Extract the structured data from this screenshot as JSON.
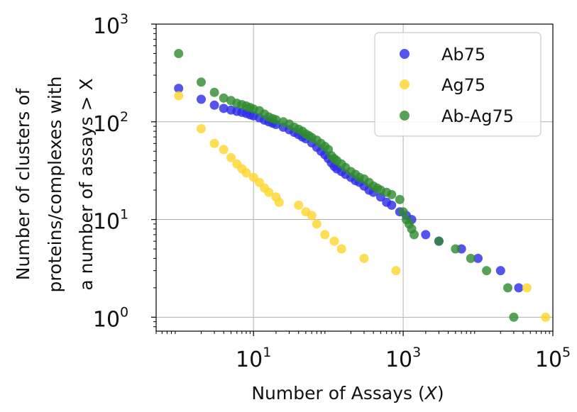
{
  "chart_data": {
    "type": "scatter",
    "title": "",
    "xlabel_prefix": "Number of Assays (",
    "xlabel_var": "X",
    "xlabel_suffix": ")",
    "ylabel_lines": [
      "Number of clusters of",
      "proteins/complexes with",
      "a number of assays > X"
    ],
    "x_scale": "log",
    "y_scale": "log",
    "xlim": [
      0.5,
      100000
    ],
    "ylim": [
      0.72,
      1000
    ],
    "grid": true,
    "legend_position": "top-right",
    "x_ticks": [
      {
        "value": 10,
        "base": "10",
        "exp": "1"
      },
      {
        "value": 1000,
        "base": "10",
        "exp": "3"
      },
      {
        "value": 100000,
        "base": "10",
        "exp": "5"
      }
    ],
    "y_ticks": [
      {
        "value": 1,
        "base": "10",
        "exp": "0"
      },
      {
        "value": 10,
        "base": "10",
        "exp": "1"
      },
      {
        "value": 100,
        "base": "10",
        "exp": "2"
      },
      {
        "value": 1000,
        "base": "10",
        "exp": "3"
      }
    ],
    "series": [
      {
        "name": "Ab75",
        "color": "#2a2ae8",
        "points": [
          [
            1,
            220
          ],
          [
            2,
            170
          ],
          [
            3,
            148
          ],
          [
            4,
            137
          ],
          [
            5,
            132
          ],
          [
            6,
            128
          ],
          [
            7,
            125
          ],
          [
            8,
            122
          ],
          [
            9,
            118
          ],
          [
            10,
            115
          ],
          [
            12,
            110
          ],
          [
            14,
            104
          ],
          [
            16,
            100
          ],
          [
            18,
            97
          ],
          [
            20,
            94
          ],
          [
            25,
            88
          ],
          [
            30,
            83
          ],
          [
            35,
            78
          ],
          [
            40,
            74
          ],
          [
            45,
            70
          ],
          [
            50,
            67
          ],
          [
            60,
            61
          ],
          [
            70,
            55
          ],
          [
            80,
            50
          ],
          [
            90,
            46
          ],
          [
            100,
            42
          ],
          [
            110,
            38
          ],
          [
            120,
            35
          ],
          [
            130,
            33
          ],
          [
            150,
            31
          ],
          [
            170,
            29
          ],
          [
            200,
            27
          ],
          [
            230,
            25
          ],
          [
            260,
            24
          ],
          [
            300,
            22
          ],
          [
            350,
            20
          ],
          [
            400,
            19
          ],
          [
            500,
            17
          ],
          [
            600,
            15
          ],
          [
            700,
            14
          ],
          [
            900,
            12
          ],
          [
            1100,
            11
          ],
          [
            1300,
            10
          ],
          [
            2000,
            7
          ],
          [
            3000,
            6
          ],
          [
            6000,
            5
          ],
          [
            10000,
            4
          ],
          [
            20000,
            3
          ],
          [
            35000,
            2
          ]
        ]
      },
      {
        "name": "Ag75",
        "color": "#ffd42a",
        "points": [
          [
            1,
            185
          ],
          [
            2,
            85
          ],
          [
            3,
            60
          ],
          [
            4,
            52
          ],
          [
            5,
            43
          ],
          [
            6,
            37
          ],
          [
            7,
            33
          ],
          [
            8,
            30
          ],
          [
            10,
            27
          ],
          [
            12,
            24
          ],
          [
            14,
            21
          ],
          [
            16,
            19
          ],
          [
            20,
            17
          ],
          [
            22,
            15
          ],
          [
            40,
            14
          ],
          [
            50,
            12
          ],
          [
            60,
            11
          ],
          [
            70,
            9
          ],
          [
            90,
            7
          ],
          [
            120,
            6
          ],
          [
            150,
            5
          ],
          [
            300,
            4
          ],
          [
            800,
            3
          ],
          [
            45000,
            2
          ],
          [
            80000,
            1
          ]
        ]
      },
      {
        "name": "Ab-Ag75",
        "color": "#2e8b2e",
        "points": [
          [
            1,
            500
          ],
          [
            2,
            255
          ],
          [
            3,
            200
          ],
          [
            4,
            175
          ],
          [
            5,
            165
          ],
          [
            6,
            155
          ],
          [
            7,
            150
          ],
          [
            8,
            145
          ],
          [
            9,
            140
          ],
          [
            10,
            135
          ],
          [
            12,
            130
          ],
          [
            14,
            120
          ],
          [
            16,
            112
          ],
          [
            18,
            108
          ],
          [
            20,
            105
          ],
          [
            25,
            100
          ],
          [
            30,
            95
          ],
          [
            35,
            88
          ],
          [
            40,
            84
          ],
          [
            45,
            80
          ],
          [
            50,
            75
          ],
          [
            55,
            72
          ],
          [
            60,
            69
          ],
          [
            70,
            65
          ],
          [
            80,
            60
          ],
          [
            90,
            56
          ],
          [
            100,
            52
          ],
          [
            110,
            45
          ],
          [
            120,
            42
          ],
          [
            130,
            40
          ],
          [
            150,
            37
          ],
          [
            170,
            34
          ],
          [
            200,
            31
          ],
          [
            230,
            29
          ],
          [
            260,
            27
          ],
          [
            300,
            26
          ],
          [
            350,
            24
          ],
          [
            400,
            22
          ],
          [
            450,
            21
          ],
          [
            500,
            20
          ],
          [
            600,
            19
          ],
          [
            700,
            18
          ],
          [
            900,
            16
          ],
          [
            1000,
            12
          ],
          [
            1100,
            10
          ],
          [
            1200,
            9
          ],
          [
            1300,
            8
          ],
          [
            1400,
            7
          ],
          [
            3000,
            6
          ],
          [
            5000,
            5
          ],
          [
            8000,
            4
          ],
          [
            13000,
            3
          ],
          [
            25000,
            2
          ],
          [
            30000,
            1
          ]
        ]
      }
    ]
  }
}
